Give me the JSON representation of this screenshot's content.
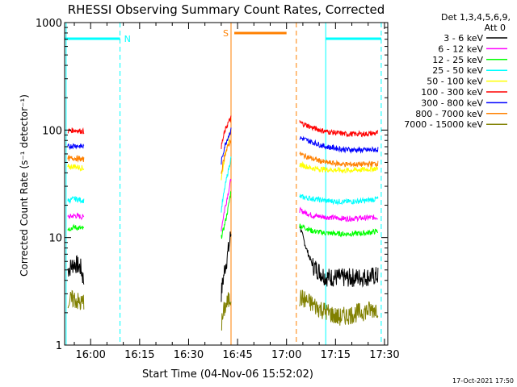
{
  "chart_data": {
    "type": "line",
    "title": "RHESSI Observing Summary Count Rates, Corrected",
    "xlabel": "Start Time (04-Nov-06 15:52:02)",
    "ylabel": "Corrected Count Rate (s⁻¹ detector⁻¹)",
    "y_scale": "log",
    "ylim": [
      1,
      1000
    ],
    "xlim": [
      "15:52:02",
      "17:31:00"
    ],
    "x_ticks": [
      "16:00",
      "16:15",
      "16:30",
      "16:45",
      "17:00",
      "17:15",
      "17:30"
    ],
    "y_ticks": [
      "1",
      "10",
      "100",
      "1000"
    ],
    "legend_title": "Det 1,3,4,5,6,9,",
    "legend_subtitle": "Att 0",
    "legend_position": "top-right",
    "series": [
      {
        "name": "3 - 6 keV",
        "color": "#000000",
        "segments": [
          {
            "x": [
              "15:53",
              "15:55",
              "15:57",
              "15:58"
            ],
            "y": [
              5,
              5.8,
              5.2,
              3.8
            ]
          },
          {
            "x": [
              "16:40",
              "16:41",
              "16:42",
              "16:43"
            ],
            "y": [
              3,
              5,
              7,
              11
            ]
          },
          {
            "x": [
              "17:04",
              "17:06",
              "17:08",
              "17:12",
              "17:18",
              "17:24",
              "17:28"
            ],
            "y": [
              13,
              8,
              5.5,
              4.3,
              4.2,
              4.3,
              4.4
            ]
          }
        ]
      },
      {
        "name": "6 - 12 keV",
        "color": "#ff00ff",
        "segments": [
          {
            "x": [
              "15:53",
              "15:55",
              "15:58"
            ],
            "y": [
              15.5,
              16,
              15.5
            ]
          },
          {
            "x": [
              "16:40",
              "16:41",
              "16:42",
              "16:43"
            ],
            "y": [
              12,
              18,
              25,
              35
            ]
          },
          {
            "x": [
              "17:04",
              "17:08",
              "17:12",
              "17:18",
              "17:24",
              "17:28"
            ],
            "y": [
              18,
              16,
              15.5,
              15,
              15.2,
              15.5
            ]
          }
        ]
      },
      {
        "name": "12 - 25 keV",
        "color": "#00ff00",
        "segments": [
          {
            "x": [
              "15:53",
              "15:55",
              "15:58"
            ],
            "y": [
              12,
              12.5,
              12
            ]
          },
          {
            "x": [
              "16:40",
              "16:41",
              "16:42",
              "16:43"
            ],
            "y": [
              10,
              13,
              18,
              27
            ]
          },
          {
            "x": [
              "17:04",
              "17:08",
              "17:12",
              "17:18",
              "17:24",
              "17:28"
            ],
            "y": [
              13,
              11.5,
              11,
              10.8,
              11,
              11.5
            ]
          }
        ]
      },
      {
        "name": "25 - 50 keV",
        "color": "#00ffff",
        "segments": [
          {
            "x": [
              "15:53",
              "15:55",
              "15:58"
            ],
            "y": [
              22,
              23,
              22
            ]
          },
          {
            "x": [
              "16:40",
              "16:41",
              "16:42",
              "16:43"
            ],
            "y": [
              18,
              28,
              40,
              55
            ]
          },
          {
            "x": [
              "17:04",
              "17:08",
              "17:12",
              "17:18",
              "17:24",
              "17:28"
            ],
            "y": [
              24,
              23,
              22,
              21.5,
              22,
              23
            ]
          }
        ]
      },
      {
        "name": "50 - 100 keV",
        "color": "#ffff00",
        "segments": [
          {
            "x": [
              "15:53",
              "15:55",
              "15:58"
            ],
            "y": [
              45,
              46,
              44
            ]
          },
          {
            "x": [
              "16:40",
              "16:41",
              "16:42",
              "16:43"
            ],
            "y": [
              35,
              55,
              75,
              100
            ]
          },
          {
            "x": [
              "17:04",
              "17:08",
              "17:12",
              "17:18",
              "17:24",
              "17:28"
            ],
            "y": [
              48,
              44,
              43,
              42,
              43,
              44
            ]
          }
        ]
      },
      {
        "name": "100 - 300 keV",
        "color": "#ff0000",
        "segments": [
          {
            "x": [
              "15:53",
              "15:55",
              "15:58"
            ],
            "y": [
              98,
              100,
              97
            ]
          },
          {
            "x": [
              "16:40",
              "16:41",
              "16:42",
              "16:43"
            ],
            "y": [
              70,
              95,
              115,
              130
            ]
          },
          {
            "x": [
              "17:04",
              "17:08",
              "17:12",
              "17:18",
              "17:24",
              "17:28"
            ],
            "y": [
              118,
              105,
              97,
              92,
              92,
              94
            ]
          }
        ]
      },
      {
        "name": "300 - 800 keV",
        "color": "#0000ff",
        "segments": [
          {
            "x": [
              "15:53",
              "15:55",
              "15:58"
            ],
            "y": [
              70,
              72,
              70
            ]
          },
          {
            "x": [
              "16:40",
              "16:41",
              "16:42",
              "16:43"
            ],
            "y": [
              50,
              70,
              85,
              100
            ]
          },
          {
            "x": [
              "17:04",
              "17:08",
              "17:12",
              "17:18",
              "17:24",
              "17:28"
            ],
            "y": [
              85,
              77,
              70,
              66,
              65,
              66
            ]
          }
        ]
      },
      {
        "name": "800 - 7000 keV",
        "color": "#ff8000",
        "segments": [
          {
            "x": [
              "15:53",
              "15:55",
              "15:58"
            ],
            "y": [
              54,
              55,
              53
            ]
          },
          {
            "x": [
              "16:40",
              "16:41",
              "16:42",
              "16:43"
            ],
            "y": [
              40,
              58,
              70,
              82
            ]
          },
          {
            "x": [
              "17:04",
              "17:08",
              "17:12",
              "17:18",
              "17:24",
              "17:28"
            ],
            "y": [
              60,
              54,
              50,
              48,
              48,
              49
            ]
          }
        ]
      },
      {
        "name": "7000 - 15000 keV",
        "color": "#808000",
        "segments": [
          {
            "x": [
              "15:53",
              "15:55",
              "15:57",
              "15:58"
            ],
            "y": [
              2.5,
              2.7,
              2.4,
              2.6
            ]
          },
          {
            "x": [
              "16:40",
              "16:41",
              "16:42",
              "16:43"
            ],
            "y": [
              1.5,
              2.2,
              2.5,
              2.8
            ]
          },
          {
            "x": [
              "17:04",
              "17:10",
              "17:16",
              "17:22",
              "17:28"
            ],
            "y": [
              2.8,
              2.2,
              1.8,
              2.0,
              2.2
            ]
          }
        ]
      }
    ],
    "annotations": {
      "night_label": "N",
      "saa_label": "S",
      "cyan_bars": [
        [
          "15:52:02",
          "16:09"
        ],
        [
          "17:12",
          "17:29"
        ]
      ],
      "orange_bar": [
        "16:44",
        "17:00"
      ],
      "vertical_lines": [
        {
          "t": "15:52:30",
          "color": "#00ffff",
          "style": "solid"
        },
        {
          "t": "16:09",
          "color": "#00ffff",
          "style": "dashed"
        },
        {
          "t": "16:43",
          "color": "#ff8000",
          "style": "solid"
        },
        {
          "t": "17:03",
          "color": "#ff8000",
          "style": "dashed"
        },
        {
          "t": "17:12",
          "color": "#00ffff",
          "style": "solid"
        },
        {
          "t": "17:29",
          "color": "#00ffff",
          "style": "dashed"
        }
      ]
    },
    "timestamp": "17-Oct-2021 17:50"
  }
}
